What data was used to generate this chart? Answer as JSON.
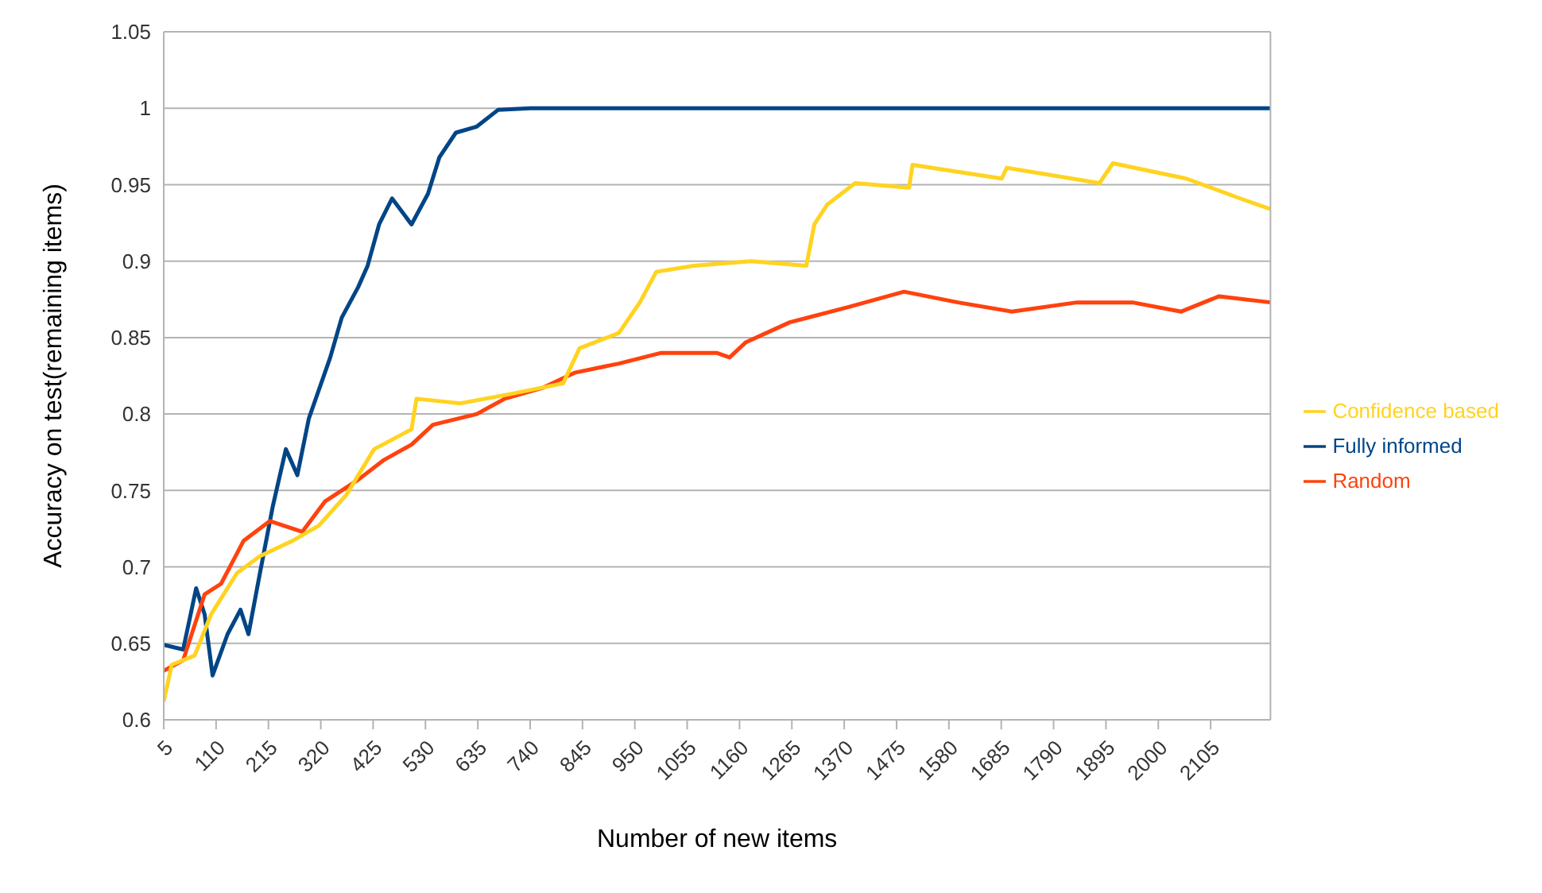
{
  "chart_data": {
    "type": "line",
    "xlabel": "Number of new items",
    "ylabel": "Accuracy on test(remaining items)",
    "xlim": [
      5,
      2225
    ],
    "xticks": [
      5,
      110,
      215,
      320,
      425,
      530,
      635,
      740,
      845,
      950,
      1055,
      1160,
      1265,
      1370,
      1475,
      1580,
      1685,
      1790,
      1895,
      2000,
      2105
    ],
    "ylim": [
      0.6,
      1.05
    ],
    "yticks": [
      0.6,
      0.65,
      0.7,
      0.75,
      0.8,
      0.85,
      0.9,
      0.95,
      1,
      1.05
    ],
    "grid": "y",
    "legend": "right",
    "marker": "none",
    "line_style": "solid",
    "series": [
      {
        "name": "Fully informed",
        "color": "#004586",
        "x": [
          5,
          44,
          70,
          87,
          103,
          133,
          159,
          175,
          198,
          224,
          250,
          273,
          296,
          339,
          362,
          395,
          414,
          437,
          463,
          502,
          535,
          558,
          591,
          633,
          676,
          741,
          1000,
          1500,
          2000,
          2225
        ],
        "values": [
          0.649,
          0.646,
          0.686,
          0.669,
          0.629,
          0.656,
          0.672,
          0.656,
          0.696,
          0.74,
          0.777,
          0.76,
          0.797,
          0.837,
          0.863,
          0.883,
          0.897,
          0.924,
          0.941,
          0.924,
          0.944,
          0.968,
          0.984,
          0.988,
          0.999,
          1,
          1,
          1,
          1,
          1
        ]
      },
      {
        "name": "Random",
        "color": "#ff420e",
        "x": [
          5,
          44,
          87,
          120,
          165,
          218,
          283,
          329,
          395,
          447,
          502,
          545,
          633,
          689,
          764,
          829,
          918,
          1003,
          1114,
          1140,
          1173,
          1261,
          1379,
          1490,
          1598,
          1706,
          1837,
          1948,
          2046,
          2122,
          2225
        ],
        "values": [
          0.632,
          0.639,
          0.682,
          0.689,
          0.717,
          0.73,
          0.723,
          0.743,
          0.757,
          0.77,
          0.78,
          0.793,
          0.8,
          0.81,
          0.817,
          0.827,
          0.833,
          0.84,
          0.84,
          0.837,
          0.847,
          0.86,
          0.87,
          0.88,
          0.873,
          0.867,
          0.873,
          0.873,
          0.867,
          0.877,
          0.873
        ]
      },
      {
        "name": "Confidence based",
        "color": "#ffd320",
        "x": [
          5,
          21,
          67,
          100,
          152,
          198,
          263,
          316,
          371,
          427,
          502,
          512,
          600,
          699,
          806,
          839,
          918,
          960,
          993,
          1068,
          1183,
          1294,
          1310,
          1336,
          1392,
          1500,
          1507,
          1686,
          1696,
          1882,
          1909,
          2056,
          2164,
          2225
        ],
        "values": [
          0.612,
          0.636,
          0.642,
          0.669,
          0.696,
          0.707,
          0.717,
          0.727,
          0.747,
          0.777,
          0.79,
          0.81,
          0.807,
          0.813,
          0.82,
          0.843,
          0.853,
          0.873,
          0.893,
          0.897,
          0.9,
          0.897,
          0.924,
          0.937,
          0.951,
          0.948,
          0.963,
          0.954,
          0.961,
          0.951,
          0.964,
          0.954,
          0.941,
          0.934
        ]
      }
    ]
  }
}
